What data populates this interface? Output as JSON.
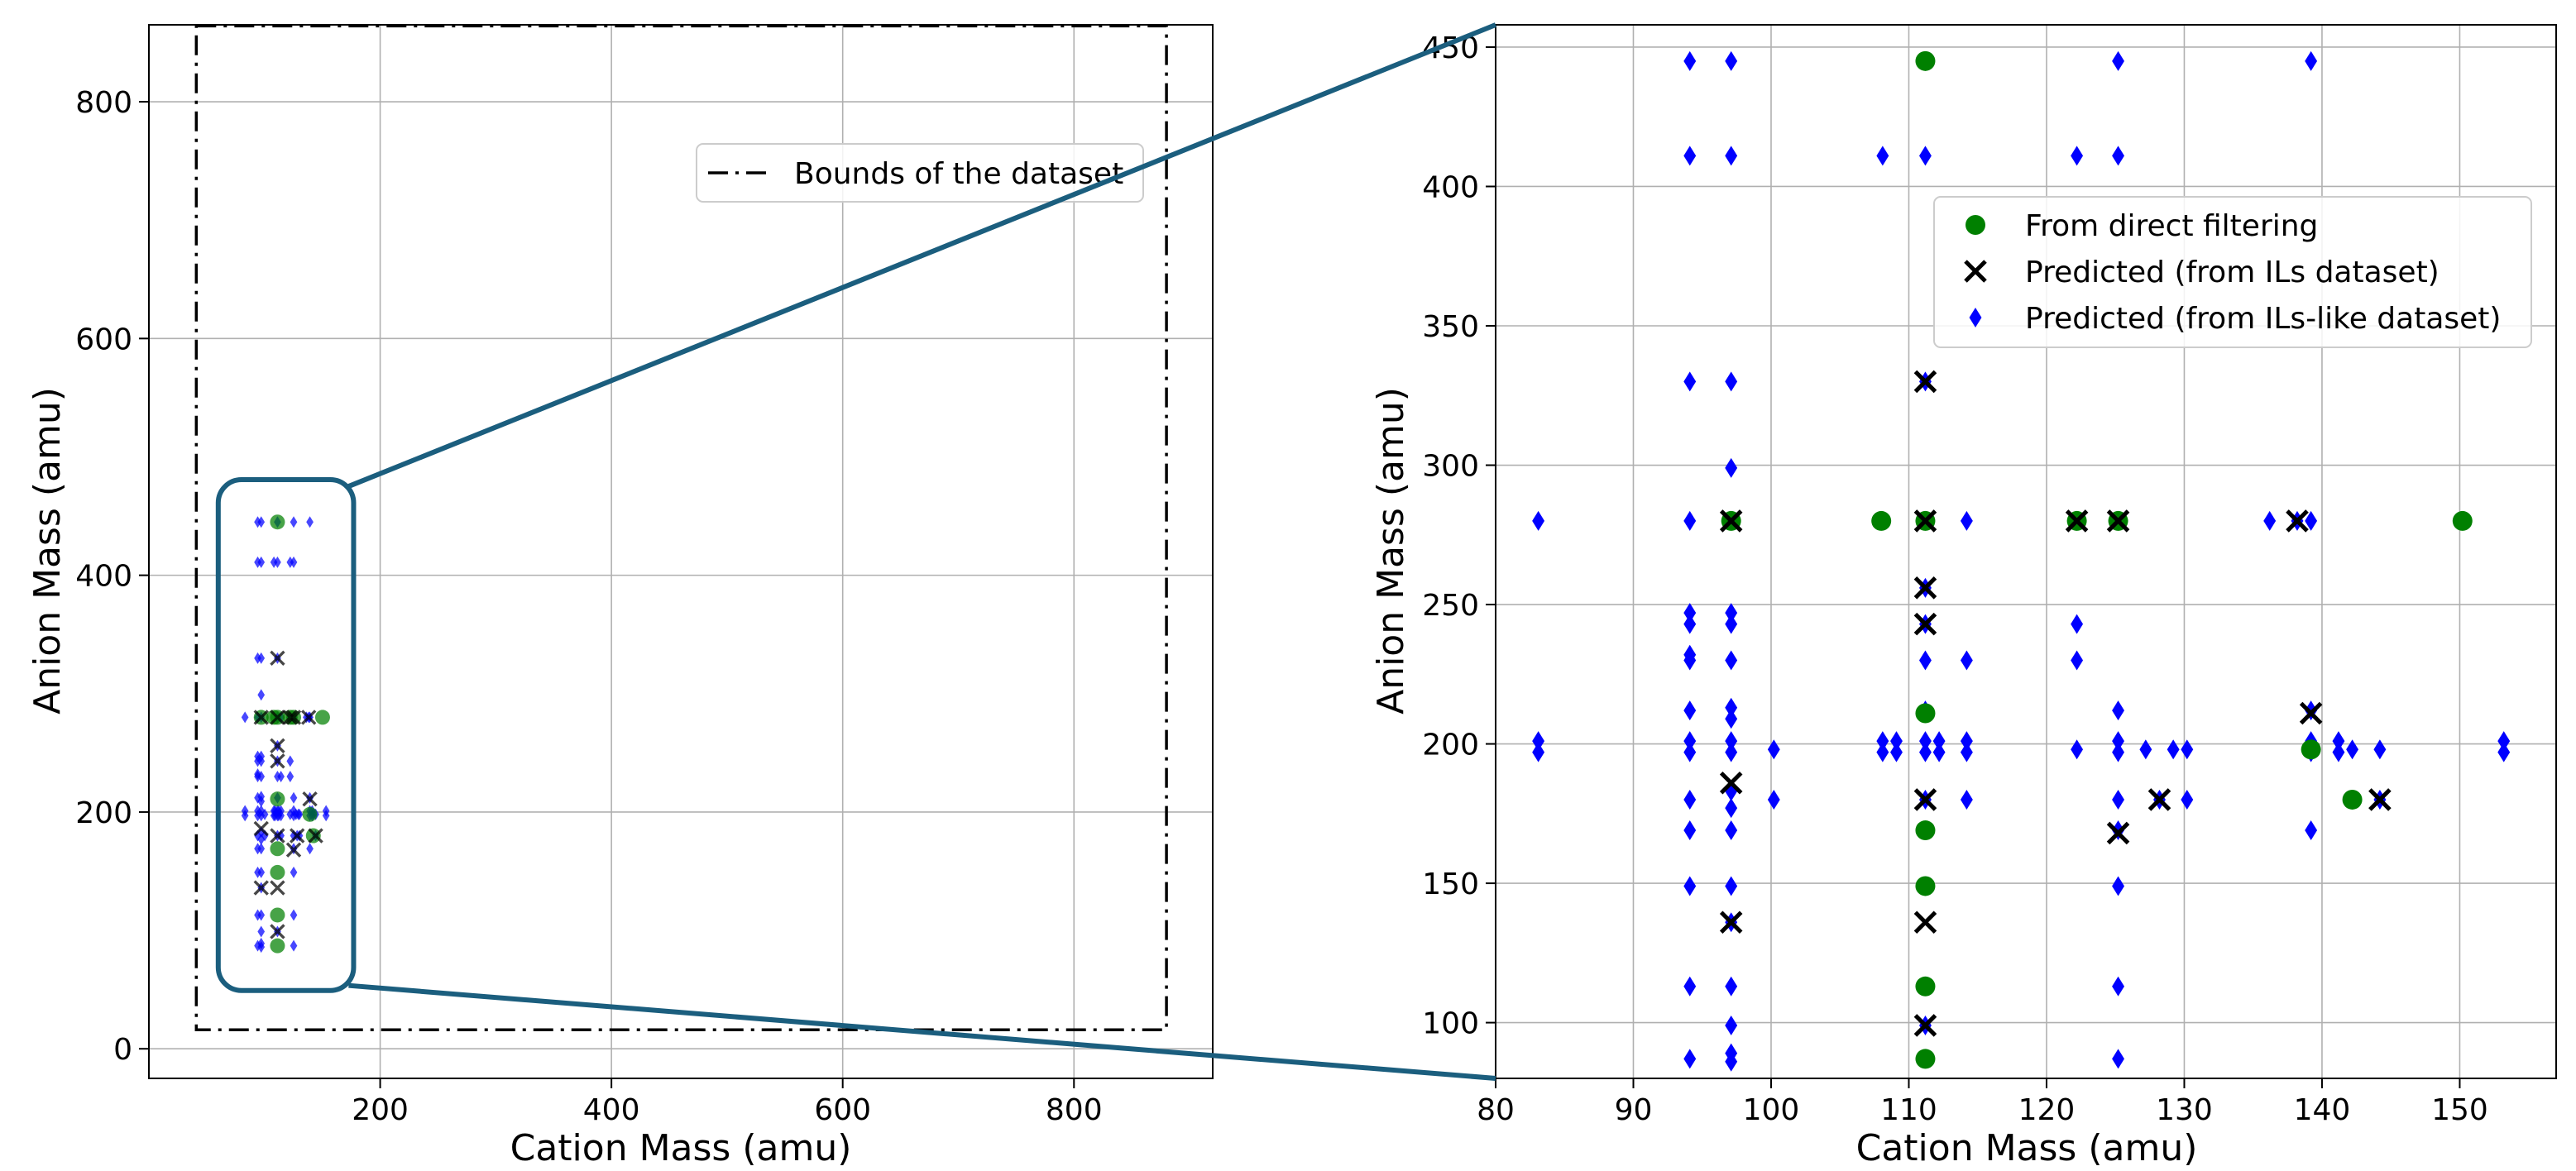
{
  "chart_data": [
    {
      "type": "scatter",
      "panel": "overview",
      "xlabel": "Cation Mass (amu)",
      "ylabel": "Anion Mass (amu)",
      "xlim": [
        0,
        920
      ],
      "ylim": [
        -25,
        865
      ],
      "xticks": [
        200,
        400,
        600,
        800
      ],
      "yticks": [
        0,
        200,
        400,
        600,
        800
      ],
      "grid": true,
      "legend": {
        "placement": "upper right",
        "entries": [
          "Bounds of the dataset"
        ]
      },
      "bounds": {
        "name": "Bounds of the dataset",
        "x": [
          41,
          880
        ],
        "y": [
          16,
          864
        ]
      },
      "zoom_box": {
        "x": [
          80,
          157
        ],
        "y": [
          80,
          450
        ]
      }
    },
    {
      "type": "scatter",
      "panel": "zoom",
      "xlabel": "Cation Mass (amu)",
      "ylabel": "Anion Mass (amu)",
      "xlim": [
        80,
        157
      ],
      "ylim": [
        80,
        458
      ],
      "xticks": [
        80,
        90,
        100,
        110,
        120,
        130,
        140,
        150
      ],
      "yticks": [
        100,
        150,
        200,
        250,
        300,
        350,
        400,
        450
      ],
      "grid": true,
      "legend": {
        "placement": "upper right",
        "entries": [
          "From direct filtering",
          "Predicted (from ILs dataset)",
          "Predicted (from ILs-like dataset)"
        ]
      },
      "series": [
        {
          "name": "From direct filtering",
          "marker": "circle",
          "color": "#008000",
          "points": [
            [
              97.1,
              280
            ],
            [
              108,
              280
            ],
            [
              111.2,
              280
            ],
            [
              122.2,
              280
            ],
            [
              125.2,
              280
            ],
            [
              150.2,
              280
            ],
            [
              111.2,
              445
            ],
            [
              111.2,
              211
            ],
            [
              111.2,
              169
            ],
            [
              111.2,
              149
            ],
            [
              111.2,
              113
            ],
            [
              111.2,
              87
            ],
            [
              139.2,
              198
            ],
            [
              142.2,
              180
            ]
          ]
        },
        {
          "name": "Predicted (from ILs dataset)",
          "marker": "x",
          "color": "#000000",
          "points": [
            [
              97.1,
              280
            ],
            [
              111.2,
              280
            ],
            [
              122.2,
              280
            ],
            [
              125.2,
              280
            ],
            [
              138.2,
              280
            ],
            [
              111.2,
              330
            ],
            [
              111.2,
              256
            ],
            [
              111.2,
              243
            ],
            [
              111.2,
              180
            ],
            [
              111.2,
              136
            ],
            [
              111.2,
              99
            ],
            [
              97.1,
              186
            ],
            [
              97.1,
              136
            ],
            [
              125.2,
              168
            ],
            [
              128.2,
              180
            ],
            [
              139.2,
              211
            ],
            [
              144.2,
              180
            ]
          ]
        },
        {
          "name": "Predicted (from ILs-like dataset)",
          "marker": "diamond",
          "color": "#0000ff",
          "points": [
            [
              94.1,
              445
            ],
            [
              97.1,
              445
            ],
            [
              111.2,
              445
            ],
            [
              125.2,
              445
            ],
            [
              139.2,
              445
            ],
            [
              94.1,
              411
            ],
            [
              97.1,
              411
            ],
            [
              108.1,
              411
            ],
            [
              111.2,
              411
            ],
            [
              122.2,
              411
            ],
            [
              125.2,
              411
            ],
            [
              94.1,
              330
            ],
            [
              97.1,
              330
            ],
            [
              111.2,
              330
            ],
            [
              97.1,
              299
            ],
            [
              83.1,
              280
            ],
            [
              94.1,
              280
            ],
            [
              97.1,
              280
            ],
            [
              111.2,
              280
            ],
            [
              114.2,
              280
            ],
            [
              122.2,
              280
            ],
            [
              125.2,
              280
            ],
            [
              136.2,
              280
            ],
            [
              138.2,
              280
            ],
            [
              139.2,
              280
            ],
            [
              94.1,
              247
            ],
            [
              94.1,
              243
            ],
            [
              97.1,
              247
            ],
            [
              97.1,
              243
            ],
            [
              111.2,
              256
            ],
            [
              111.2,
              243
            ],
            [
              122.2,
              243
            ],
            [
              94.1,
              232
            ],
            [
              94.1,
              230
            ],
            [
              97.1,
              230
            ],
            [
              111.2,
              230
            ],
            [
              114.2,
              230
            ],
            [
              122.2,
              230
            ],
            [
              94.1,
              212
            ],
            [
              97.1,
              213
            ],
            [
              97.1,
              209
            ],
            [
              111.2,
              212
            ],
            [
              125.2,
              212
            ],
            [
              139.2,
              212
            ],
            [
              83.1,
              201
            ],
            [
              83.1,
              197
            ],
            [
              94.1,
              201
            ],
            [
              94.1,
              197
            ],
            [
              97.1,
              201
            ],
            [
              97.1,
              197
            ],
            [
              100.2,
              198
            ],
            [
              108.1,
              201
            ],
            [
              108.1,
              197
            ],
            [
              109.1,
              201
            ],
            [
              109.1,
              197
            ],
            [
              111.2,
              201
            ],
            [
              111.2,
              197
            ],
            [
              112.2,
              201
            ],
            [
              112.2,
              197
            ],
            [
              114.2,
              201
            ],
            [
              114.2,
              197
            ],
            [
              122.2,
              198
            ],
            [
              125.2,
              201
            ],
            [
              125.2,
              197
            ],
            [
              127.2,
              198
            ],
            [
              129.2,
              198
            ],
            [
              130.2,
              198
            ],
            [
              139.2,
              201
            ],
            [
              139.2,
              197
            ],
            [
              141.2,
              201
            ],
            [
              141.2,
              197
            ],
            [
              142.2,
              198
            ],
            [
              144.2,
              198
            ],
            [
              153.2,
              201
            ],
            [
              153.2,
              197
            ],
            [
              94.1,
              180
            ],
            [
              97.1,
              183
            ],
            [
              97.1,
              177
            ],
            [
              100.2,
              180
            ],
            [
              111.2,
              180
            ],
            [
              114.2,
              180
            ],
            [
              125.2,
              180
            ],
            [
              128.2,
              180
            ],
            [
              130.2,
              180
            ],
            [
              144.2,
              180
            ],
            [
              94.1,
              169
            ],
            [
              97.1,
              169
            ],
            [
              125.2,
              169
            ],
            [
              139.2,
              169
            ],
            [
              94.1,
              149
            ],
            [
              97.1,
              149
            ],
            [
              125.2,
              149
            ],
            [
              97.1,
              136
            ],
            [
              94.1,
              113
            ],
            [
              97.1,
              113
            ],
            [
              125.2,
              113
            ],
            [
              97.1,
              99
            ],
            [
              111.2,
              99
            ],
            [
              94.1,
              87
            ],
            [
              97.1,
              89
            ],
            [
              97.1,
              86
            ],
            [
              125.2,
              87
            ]
          ]
        }
      ]
    }
  ]
}
